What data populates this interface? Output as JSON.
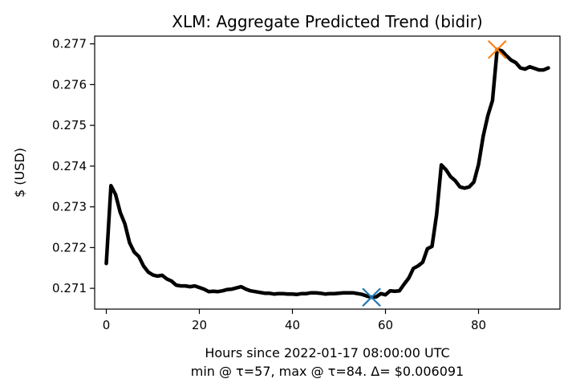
{
  "chart_data": {
    "type": "line",
    "title": "XLM: Aggregate Predicted Trend (bidir)",
    "xlabel": "Hours since 2022-01-17 08:00:00 UTC",
    "xlabel_note": "min @ τ=57, max @ τ=84. Δ= $0.006091",
    "ylabel": "$ (USD)",
    "xlim": [
      -2.5,
      97.5
    ],
    "ylim": [
      0.27049,
      0.27719
    ],
    "xticks": [
      0,
      20,
      40,
      60,
      80
    ],
    "xtick_labels": [
      "0",
      "20",
      "40",
      "60",
      "80"
    ],
    "yticks": [
      0.271,
      0.272,
      0.273,
      0.274,
      0.275,
      0.276,
      0.277
    ],
    "ytick_labels": [
      "0.271",
      "0.272",
      "0.273",
      "0.274",
      "0.275",
      "0.276",
      "0.277"
    ],
    "grid": false,
    "series": [
      {
        "color": "#000000",
        "x": [
          0,
          1,
          2,
          3,
          4,
          5,
          6,
          7,
          8,
          9,
          10,
          11,
          12,
          13,
          14,
          15,
          16,
          17,
          18,
          19,
          20,
          21,
          22,
          23,
          24,
          25,
          26,
          27,
          28,
          29,
          30,
          31,
          32,
          33,
          34,
          35,
          36,
          37,
          38,
          39,
          40,
          41,
          42,
          43,
          44,
          45,
          46,
          47,
          48,
          49,
          50,
          51,
          52,
          53,
          54,
          55,
          56,
          57,
          58,
          59,
          60,
          61,
          62,
          63,
          64,
          65,
          66,
          67,
          68,
          69,
          70,
          71,
          72,
          73,
          74,
          75,
          76,
          77,
          78,
          79,
          80,
          81,
          82,
          83,
          84,
          85,
          86,
          87,
          88,
          89,
          90,
          91,
          92,
          93,
          94,
          95
        ],
        "y": [
          0.27161,
          0.27352,
          0.2733,
          0.27286,
          0.27258,
          0.27212,
          0.27189,
          0.27178,
          0.27155,
          0.2714,
          0.27133,
          0.2713,
          0.27132,
          0.27123,
          0.27118,
          0.27108,
          0.27106,
          0.27106,
          0.27104,
          0.27106,
          0.27102,
          0.27098,
          0.27092,
          0.27093,
          0.27092,
          0.27094,
          0.27097,
          0.27098,
          0.27101,
          0.27104,
          0.27098,
          0.27094,
          0.27092,
          0.2709,
          0.27088,
          0.27088,
          0.27086,
          0.27087,
          0.27087,
          0.27086,
          0.27086,
          0.27085,
          0.27087,
          0.27087,
          0.27089,
          0.27089,
          0.27088,
          0.27086,
          0.27087,
          0.27087,
          0.27088,
          0.27089,
          0.27089,
          0.27089,
          0.27087,
          0.27085,
          0.27081,
          0.27078,
          0.27079,
          0.27087,
          0.27084,
          0.27094,
          0.27093,
          0.27094,
          0.2711,
          0.27125,
          0.27149,
          0.27155,
          0.27164,
          0.27197,
          0.27203,
          0.27282,
          0.27403,
          0.27391,
          0.27374,
          0.27364,
          0.27349,
          0.27346,
          0.27349,
          0.27361,
          0.27404,
          0.27473,
          0.27524,
          0.27561,
          0.27686,
          0.27683,
          0.27671,
          0.2766,
          0.27654,
          0.27641,
          0.27638,
          0.27644,
          0.2764,
          0.27636,
          0.27636,
          0.27641
        ]
      }
    ],
    "markers": [
      {
        "label": "min",
        "x": 57,
        "y": 0.27078,
        "color": "#1f77b4",
        "shape": "x"
      },
      {
        "label": "max",
        "x": 84,
        "y": 0.27686,
        "color": "#ff7f0e",
        "shape": "x"
      }
    ]
  }
}
